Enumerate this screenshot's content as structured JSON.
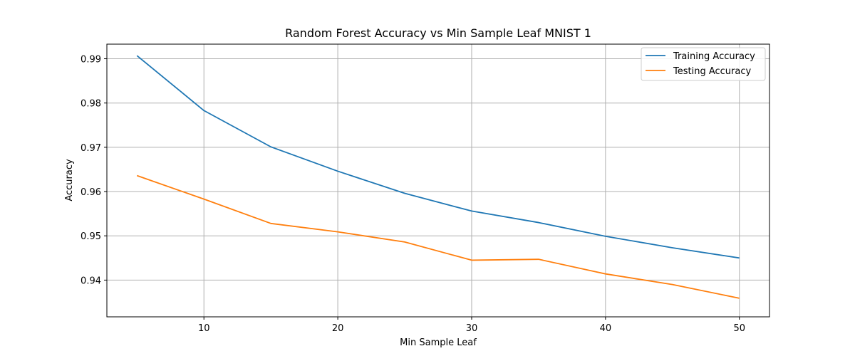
{
  "chart_data": {
    "type": "line",
    "title": "Random Forest Accuracy vs Min Sample Leaf MNIST 1",
    "xlabel": "Min Sample Leaf",
    "ylabel": "Accuracy",
    "x": [
      5,
      10,
      15,
      20,
      25,
      30,
      35,
      40,
      45,
      50
    ],
    "xlim": [
      2.75,
      52.25
    ],
    "ylim": [
      0.9317,
      0.9933
    ],
    "xticks": [
      10,
      20,
      30,
      40,
      50
    ],
    "yticks": [
      0.94,
      0.95,
      0.96,
      0.97,
      0.98,
      0.99
    ],
    "ytick_labels": [
      "0.94",
      "0.95",
      "0.96",
      "0.97",
      "0.98",
      "0.99"
    ],
    "grid": true,
    "legend_position": "top-right",
    "series": [
      {
        "name": "Training Accuracy",
        "color": "#1f77b4",
        "values": [
          0.9907,
          0.9783,
          0.9701,
          0.9646,
          0.9596,
          0.9556,
          0.953,
          0.9499,
          0.9473,
          0.945
        ]
      },
      {
        "name": "Testing Accuracy",
        "color": "#ff7f0e",
        "values": [
          0.9636,
          0.9583,
          0.9528,
          0.9509,
          0.9486,
          0.9445,
          0.9447,
          0.9414,
          0.939,
          0.9359
        ]
      }
    ]
  }
}
